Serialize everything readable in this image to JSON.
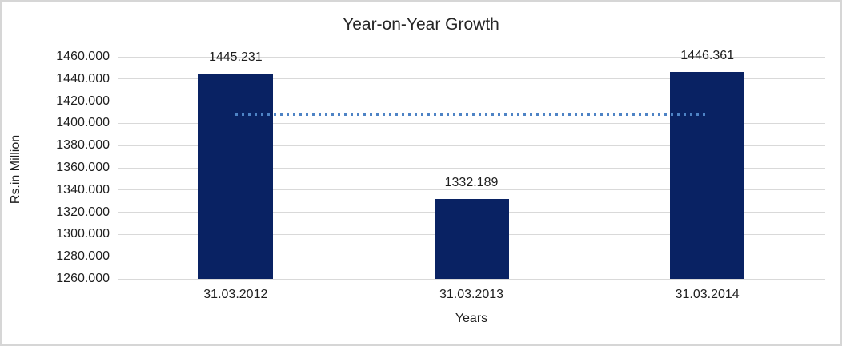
{
  "chart_data": {
    "type": "bar",
    "title": "Year-on-Year Growth",
    "xlabel": "Years",
    "ylabel": "Rs.in Million",
    "categories": [
      "31.03.2012",
      "31.03.2013",
      "31.03.2014"
    ],
    "values": [
      1445.231,
      1332.189,
      1446.361
    ],
    "data_labels": [
      "1445.231",
      "1332.189",
      "1446.361"
    ],
    "ylim": [
      1260,
      1460
    ],
    "ytick_step": 20,
    "yticks": [
      "1460.000",
      "1440.000",
      "1420.000",
      "1400.000",
      "1380.000",
      "1360.000",
      "1340.000",
      "1320.000",
      "1300.000",
      "1280.000",
      "1260.000"
    ],
    "grid": true,
    "legend": "none",
    "bar_color": "#092263",
    "trendline": {
      "type": "average",
      "style": "dotted",
      "value": 1407.927,
      "color": "#4e83c5",
      "span": "center of first bar to center of last bar"
    },
    "gridline_color": "#d9d9d9",
    "frame_border_color": "#d6d6d6",
    "text_color": "#1f1f1f"
  }
}
